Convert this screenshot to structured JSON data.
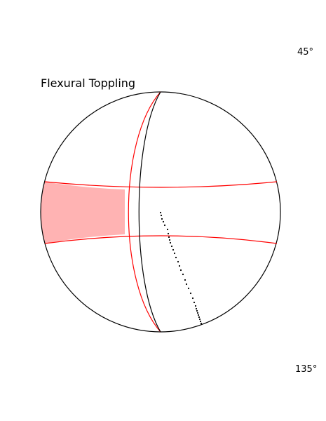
{
  "title": "Flexural Toppling",
  "labels": {
    "top_right": "45°",
    "bottom_right": "135°"
  },
  "colors": {
    "circle": "#000000",
    "plane": "#ff0000",
    "zone_fill": "#ffb3b3",
    "poles": "#000000"
  }
}
